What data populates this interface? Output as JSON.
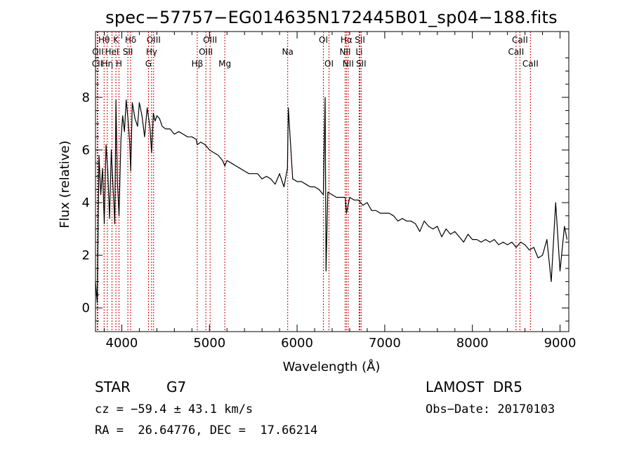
{
  "chart_data": {
    "type": "line",
    "title": "spec−57757−EG014635N172445B01_sp04−188.fits",
    "xlabel": "Wavelength (Å)",
    "ylabel": "Flux (relative)",
    "xlim": [
      3700,
      9100
    ],
    "ylim": [
      -0.9,
      10.5
    ],
    "xticks": [
      4000,
      5000,
      6000,
      7000,
      8000,
      9000
    ],
    "yticks": [
      0,
      2,
      4,
      6,
      8
    ],
    "grid": false,
    "series": [
      {
        "x": [
          3700,
          3720,
          3740,
          3760,
          3780,
          3800,
          3820,
          3840,
          3860,
          3880,
          3900,
          3920,
          3933,
          3950,
          3968,
          3990,
          4010,
          4030,
          4050,
          4070,
          4090,
          4101,
          4120,
          4150,
          4180,
          4200,
          4230,
          4260,
          4290,
          4320,
          4340,
          4360,
          4380,
          4400,
          4430,
          4460,
          4500,
          4550,
          4600,
          4650,
          4700,
          4750,
          4800,
          4850,
          4861,
          4900,
          4950,
          5000,
          5050,
          5100,
          5150,
          5175,
          5200,
          5250,
          5300,
          5350,
          5400,
          5450,
          5500,
          5550,
          5600,
          5650,
          5700,
          5750,
          5800,
          5850,
          5890,
          5900,
          5950,
          6000,
          6050,
          6100,
          6150,
          6200,
          6250,
          6300,
          6320,
          6330,
          6350,
          6400,
          6450,
          6500,
          6550,
          6563,
          6600,
          6650,
          6700,
          6750,
          6800,
          6850,
          6900,
          6950,
          7000,
          7050,
          7100,
          7150,
          7200,
          7250,
          7300,
          7350,
          7400,
          7450,
          7500,
          7550,
          7600,
          7650,
          7700,
          7750,
          7800,
          7850,
          7900,
          7950,
          8000,
          8050,
          8100,
          8150,
          8200,
          8250,
          8300,
          8350,
          8400,
          8450,
          8500,
          8550,
          8600,
          8650,
          8700,
          8750,
          8800,
          8850,
          8900,
          8950,
          9000,
          9050,
          9080
        ],
        "y": [
          1.0,
          0.2,
          5.8,
          4.3,
          5.3,
          3.2,
          6.2,
          5.2,
          3.4,
          6.0,
          4.6,
          3.2,
          7.9,
          4.8,
          3.5,
          6.4,
          7.3,
          6.7,
          7.9,
          7.2,
          6.3,
          5.2,
          7.8,
          7.2,
          6.9,
          7.8,
          7.3,
          6.5,
          7.6,
          6.9,
          5.9,
          7.4,
          7.1,
          7.3,
          7.2,
          6.9,
          6.8,
          6.8,
          6.6,
          6.7,
          6.6,
          6.5,
          6.5,
          6.4,
          6.2,
          6.3,
          6.2,
          6.0,
          5.9,
          5.8,
          5.6,
          5.4,
          5.6,
          5.5,
          5.4,
          5.3,
          5.2,
          5.1,
          5.1,
          5.1,
          4.9,
          5.0,
          4.9,
          4.7,
          5.1,
          4.6,
          5.3,
          7.6,
          4.9,
          4.8,
          4.8,
          4.7,
          4.6,
          4.6,
          4.5,
          4.3,
          8.0,
          1.4,
          4.4,
          4.3,
          4.2,
          4.2,
          4.2,
          3.6,
          4.2,
          4.1,
          4.1,
          3.9,
          4.0,
          3.7,
          3.7,
          3.6,
          3.6,
          3.6,
          3.5,
          3.3,
          3.4,
          3.3,
          3.3,
          3.2,
          2.9,
          3.3,
          3.1,
          3.0,
          3.1,
          2.7,
          3.0,
          2.8,
          2.9,
          2.7,
          2.5,
          2.8,
          2.6,
          2.6,
          2.5,
          2.6,
          2.5,
          2.6,
          2.4,
          2.5,
          2.4,
          2.5,
          2.3,
          2.5,
          2.4,
          2.2,
          2.3,
          1.9,
          2.0,
          2.6,
          1.0,
          4.0,
          1.4,
          3.1,
          2.6
        ]
      }
    ],
    "line_markers": [
      {
        "name": "Hθ",
        "x": 3798,
        "row": 0
      },
      {
        "name": "K",
        "x": 3933,
        "row": 0
      },
      {
        "name": "Hδ",
        "x": 4101,
        "row": 0
      },
      {
        "name": "OIII",
        "x": 4363,
        "row": 0
      },
      {
        "name": "OIII",
        "x": 5007,
        "row": 0
      },
      {
        "name": "OI",
        "x": 6300,
        "row": 0
      },
      {
        "name": "Hα",
        "x": 6563,
        "row": 0
      },
      {
        "name": "SII",
        "x": 6717,
        "row": 0
      },
      {
        "name": "CaII",
        "x": 8542,
        "row": 0
      },
      {
        "name": "OII",
        "x": 3727,
        "row": 1
      },
      {
        "name": "HeI",
        "x": 3888,
        "row": 1
      },
      {
        "name": "SII",
        "x": 4069,
        "row": 1
      },
      {
        "name": "Hγ",
        "x": 4340,
        "row": 1
      },
      {
        "name": "OIII",
        "x": 4959,
        "row": 1
      },
      {
        "name": "Na",
        "x": 5893,
        "row": 1
      },
      {
        "name": "NII",
        "x": 6548,
        "row": 1
      },
      {
        "name": "Li",
        "x": 6708,
        "row": 1
      },
      {
        "name": "CaII",
        "x": 8498,
        "row": 1
      },
      {
        "name": "CII",
        "x": 3720,
        "row": 2
      },
      {
        "name": "Hη",
        "x": 3835,
        "row": 2
      },
      {
        "name": "H",
        "x": 3968,
        "row": 2
      },
      {
        "name": "G",
        "x": 4304,
        "row": 2
      },
      {
        "name": "Hβ",
        "x": 4861,
        "row": 2
      },
      {
        "name": "Mg",
        "x": 5175,
        "row": 2
      },
      {
        "name": "OI",
        "x": 6364,
        "row": 2
      },
      {
        "name": "NII",
        "x": 6583,
        "row": 2
      },
      {
        "name": "SII",
        "x": 6731,
        "row": 2
      },
      {
        "name": "CaII",
        "x": 8662,
        "row": 2
      }
    ],
    "marker_color": "#cc0000",
    "line_color": "#000000"
  },
  "info": {
    "class": "STAR",
    "subclass": "G7",
    "survey": "LAMOST  DR5",
    "cz": "cz = −59.4 ± 43.1 km/s",
    "obs_date": "Obs−Date: 20170103",
    "coords": "RA =  26.64776, DEC =  17.66214"
  }
}
